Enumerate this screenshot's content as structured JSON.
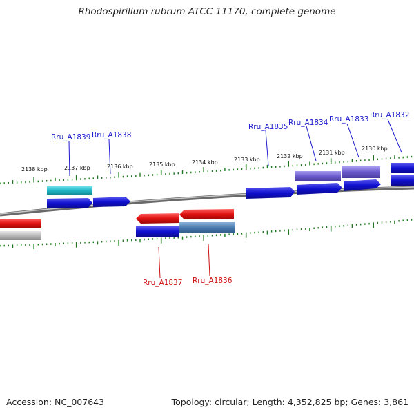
{
  "title": "Rhodospirillum rubrum ATCC 11170, complete genome",
  "footer": {
    "accession": "Accession: NC_007643",
    "topology": "Topology: circular; Length: 4,352,825 bp; Genes: 3,861"
  },
  "kbp_ticks": [
    "2138 kbp",
    "2137 kbp",
    "2136 kbp",
    "2135 kbp",
    "2134 kbp",
    "2133 kbp",
    "2132 kbp",
    "2131 kbp",
    "2130 kbp"
  ],
  "gene_labels": {
    "forward": [
      "Rru_A1839",
      "Rru_A1838",
      "Rru_A1835",
      "Rru_A1834",
      "Rru_A1833",
      "Rru_A1832"
    ],
    "reverse": [
      "Rru_A1837",
      "Rru_A1836"
    ]
  },
  "colors": {
    "forward_label": "#1a1acc",
    "reverse_label": "#cc1111",
    "tick": "#1e7a1e",
    "backbone": "#8a8a8a",
    "cds_blue": "#1010d0",
    "cds_red": "#e01010",
    "cds_cyan": "#20b8c8",
    "cds_purple": "#6a5acd",
    "cds_steel": "#4a7ab0",
    "cds_gray": "#b8b8b8"
  }
}
